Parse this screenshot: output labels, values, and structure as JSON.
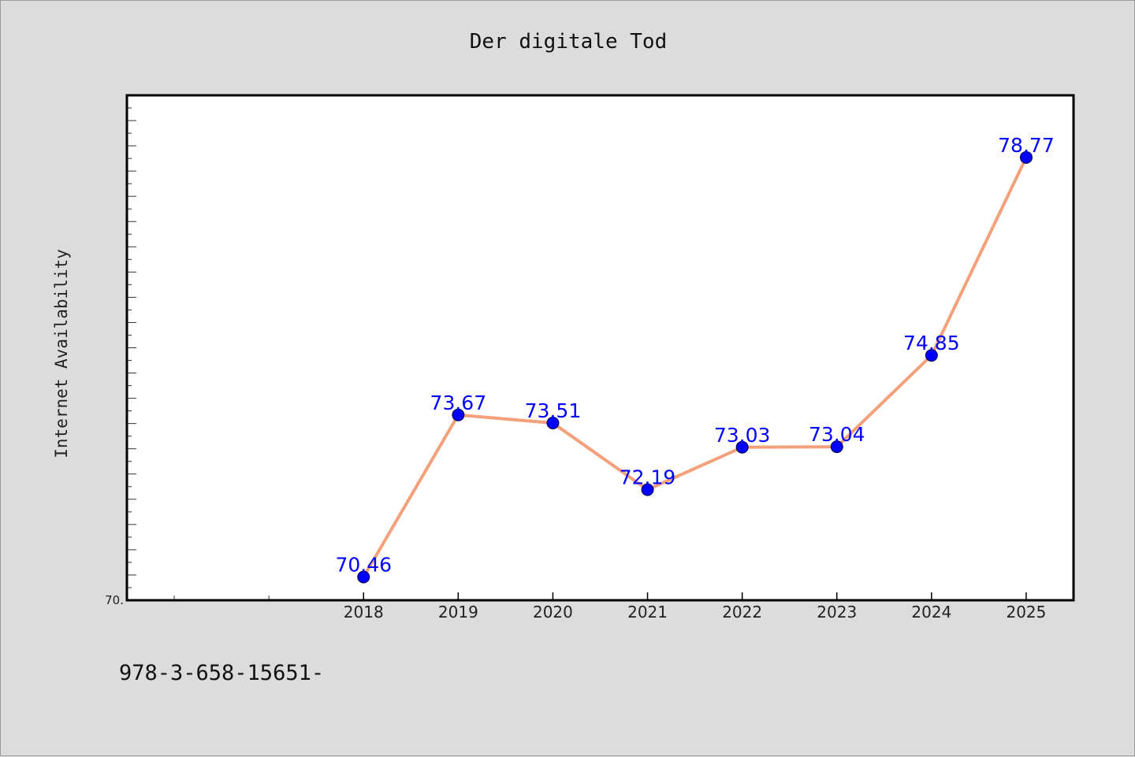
{
  "colors": {
    "background": "#dcdcdc",
    "plot_background": "#ffffff",
    "line": "#f4a07a",
    "marker": "#0000ff",
    "data_label": "#0000ff"
  },
  "chart_data": {
    "type": "line",
    "title": "Der digitale Tod",
    "xlabel": "",
    "ylabel": "Internet Availability",
    "categories": [
      "2018",
      "2019",
      "2020",
      "2021",
      "2022",
      "2023",
      "2024",
      "2025"
    ],
    "series": [
      {
        "values": [
          70.46,
          73.67,
          73.51,
          72.19,
          73.03,
          73.04,
          74.85,
          78.77
        ],
        "labels": [
          "70.46",
          "73.67",
          "73.51",
          "72.19",
          "73.03",
          "73.04",
          "74.85",
          "78.77"
        ]
      }
    ],
    "x_range": [
      2015.5,
      2025.5
    ],
    "ylim": [
      70.0,
      80.0
    ],
    "y_min_tick_label": "70.",
    "grid": false,
    "legend": "none",
    "markers": true
  },
  "footnote": "978-3-658-15651-"
}
